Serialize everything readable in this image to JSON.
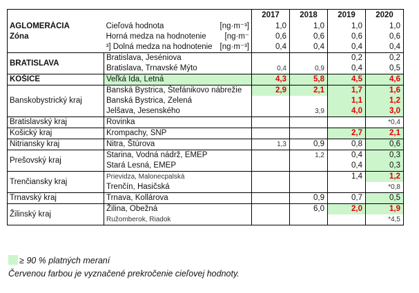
{
  "years": [
    "2017",
    "2018",
    "2019",
    "2020"
  ],
  "header": {
    "title_line1": "AGLOMERÁCIA",
    "title_line2": "Zóna",
    "rows": [
      {
        "label": "Cieľová hodnota",
        "unit": "[ng·m⁻³]",
        "values": [
          "1,0",
          "1,0",
          "1,0",
          "1,0"
        ]
      },
      {
        "label": "Horná medza na hodnotenie",
        "unit": "[ng·m⁻",
        "values": [
          "0,6",
          "0,6",
          "0,6",
          "0,6"
        ]
      },
      {
        "label": "³] Dolná medza na hodnotenie",
        "unit": "[ng·m⁻³]",
        "values": [
          "0,4",
          "0,4",
          "0,4",
          "0,4"
        ]
      }
    ]
  },
  "groups": [
    {
      "zone": "BRATISLAVA",
      "stations": [
        {
          "name": "Bratislava, Jeséniova",
          "values": [
            "",
            "",
            "0,2",
            "0,2"
          ]
        },
        {
          "name": "Bratislava, Trnavské Mýto",
          "values": [
            "0,4",
            "0,9",
            "0,4",
            "0,5"
          ]
        }
      ]
    },
    {
      "zone": "KOŠICE",
      "stations": [
        {
          "name": "Veľká Ida, Letná",
          "values": [
            "4,3",
            "5,8",
            "4,5",
            "4,6"
          ]
        }
      ]
    },
    {
      "zone": "Banskobystrický kraj",
      "stations": [
        {
          "name": "Banská Bystrica, Štefánikovo nábrežie",
          "values": [
            "2,9",
            "2,1",
            "1,7",
            "1,6"
          ]
        },
        {
          "name": "Banská Bystrica, Zelená",
          "values": [
            "",
            "",
            "1,1",
            "1,2"
          ]
        },
        {
          "name": "Jelšava, Jesenského",
          "values": [
            "",
            "3,9",
            "4,0",
            "3,0"
          ]
        }
      ]
    },
    {
      "zone": "Bratislavský kraj",
      "stations": [
        {
          "name": "Rovinka",
          "values": [
            "",
            "",
            "",
            "*0,4"
          ]
        }
      ]
    },
    {
      "zone": "Košický kraj",
      "stations": [
        {
          "name": "Krompachy, SNP",
          "values": [
            "",
            "",
            "2,7",
            "2,1"
          ]
        }
      ]
    },
    {
      "zone": "Nitriansky kraj",
      "stations": [
        {
          "name": "Nitra, Štúrova",
          "values": [
            "1,3",
            "0,9",
            "0,8",
            "0,6"
          ]
        }
      ]
    },
    {
      "zone": "Prešovský kraj",
      "stations": [
        {
          "name": "Starina, Vodná nádrž, EMEP",
          "values": [
            "",
            "1,2",
            "0,4",
            "0,3"
          ]
        },
        {
          "name": "Stará Lesná, EMEP",
          "values": [
            "",
            "",
            "0,4",
            "0,3"
          ]
        }
      ]
    },
    {
      "zone": "Trenčiansky kraj",
      "stations": [
        {
          "name": "Prievidza, Malonecpalská",
          "values": [
            "",
            "",
            "1,4",
            "1,2"
          ]
        },
        {
          "name": "Trenčín, Hasičská",
          "values": [
            "",
            "",
            "",
            "*0,8"
          ]
        }
      ]
    },
    {
      "zone": "Trnavský kraj",
      "stations": [
        {
          "name": "Trnava, Kollárova",
          "values": [
            "",
            "0,9",
            "0,7",
            "0,5"
          ]
        }
      ]
    },
    {
      "zone": "Žilinský kraj",
      "stations": [
        {
          "name": "Žilina, Obežná",
          "values": [
            "",
            "6,0",
            "2,0",
            "1,9"
          ]
        },
        {
          "name": "Ružomberok, Riadok",
          "values": [
            "",
            "",
            "",
            "*4,5"
          ]
        }
      ]
    }
  ],
  "legend": {
    "valid_measurements": "≥ 90 % platných meraní",
    "exceedance_note": "Červenou farbou je vyznačené prekročenie cieľovej hodnoty."
  },
  "colors": {
    "highlight": "#ccf5cc",
    "exceedance": "#e00000"
  }
}
